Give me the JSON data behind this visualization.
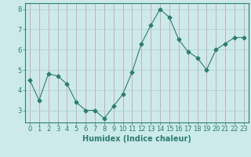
{
  "x": [
    0,
    1,
    2,
    3,
    4,
    5,
    6,
    7,
    8,
    9,
    10,
    11,
    12,
    13,
    14,
    15,
    16,
    17,
    18,
    19,
    20,
    21,
    22,
    23
  ],
  "y": [
    4.5,
    3.5,
    4.8,
    4.7,
    4.3,
    3.4,
    3.0,
    3.0,
    2.6,
    3.2,
    3.8,
    4.9,
    6.3,
    7.2,
    8.0,
    7.6,
    6.5,
    5.9,
    5.6,
    5.0,
    6.0,
    6.3,
    6.6,
    6.6
  ],
  "line_color": "#2e7d6e",
  "marker": "D",
  "marker_size": 2.5,
  "bg_color": "#cceaea",
  "grid_color_h": "#b0d4d4",
  "grid_color_v": "#d4a0a0",
  "xlabel": "Humidex (Indice chaleur)",
  "ylim": [
    2.4,
    8.3
  ],
  "yticks": [
    3,
    4,
    5,
    6,
    7,
    8
  ],
  "xlim": [
    -0.5,
    23.5
  ],
  "xlabel_fontsize": 7,
  "tick_fontsize": 6
}
